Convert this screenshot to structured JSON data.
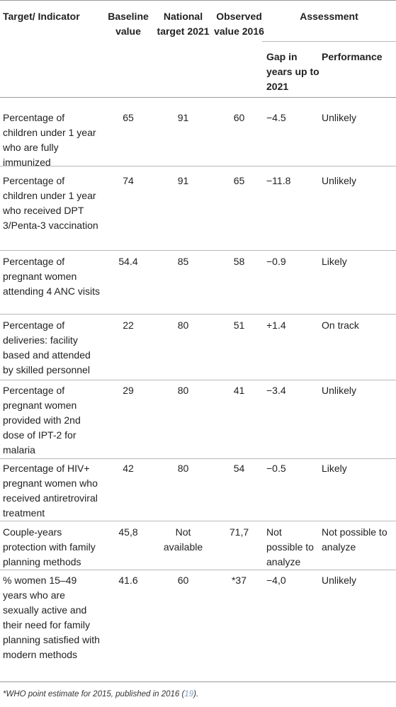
{
  "header": {
    "indicator": "Target/ Indicator",
    "baseline": "Baseline value",
    "national": "National target 2021",
    "observed": "Observed value 2016",
    "assessment": "Assessment",
    "gap": "Gap in years up to 2021",
    "performance": "Performance"
  },
  "rows": [
    {
      "indicator": "Percentage of children under 1 year who are fully immunized",
      "baseline": "65",
      "national": "91",
      "observed": "60",
      "gap": "−4.5",
      "performance": "Unlikely"
    },
    {
      "indicator": "Percentage of children under 1 year who received DPT 3/Penta-3 vaccination",
      "baseline": "74",
      "national": "91",
      "observed": "65",
      "gap": "−11.8",
      "performance": "Unlikely"
    },
    {
      "indicator": "Percentage of pregnant women attending 4 ANC visits",
      "baseline": "54.4",
      "national": "85",
      "observed": "58",
      "gap": "−0.9",
      "performance": "Likely"
    },
    {
      "indicator": "Percentage of deliveries: facility based and attended by skilled personnel",
      "baseline": "22",
      "national": "80",
      "observed": "51",
      "gap": "+1.4",
      "performance": "On track"
    },
    {
      "indicator": "Percentage of pregnant women provided with 2nd dose of IPT-2 for malaria",
      "baseline": "29",
      "national": "80",
      "observed": "41",
      "gap": "−3.4",
      "performance": "Unlikely"
    },
    {
      "indicator": "Percentage of HIV+ pregnant women who received antiretroviral treatment",
      "baseline": "42",
      "national": "80",
      "observed": "54",
      "gap": "−0.5",
      "performance": "Likely"
    },
    {
      "indicator": "Couple-years protection with family planning methods",
      "baseline": "45,8",
      "national": "Not available",
      "observed": "71,7",
      "gap": "Not possible to analyze",
      "performance": "Not possible to analyze"
    },
    {
      "indicator": "% women 15–49 years who are sexually active and their need for family planning satisfied with modern methods",
      "baseline": "41.6",
      "national": "60",
      "observed": "*37",
      "gap": "−4,0",
      "performance": "Unlikely"
    }
  ],
  "footnote": {
    "text": "*WHO point estimate for 2015, published in 2016 (",
    "ref": "19",
    "end": ")."
  }
}
